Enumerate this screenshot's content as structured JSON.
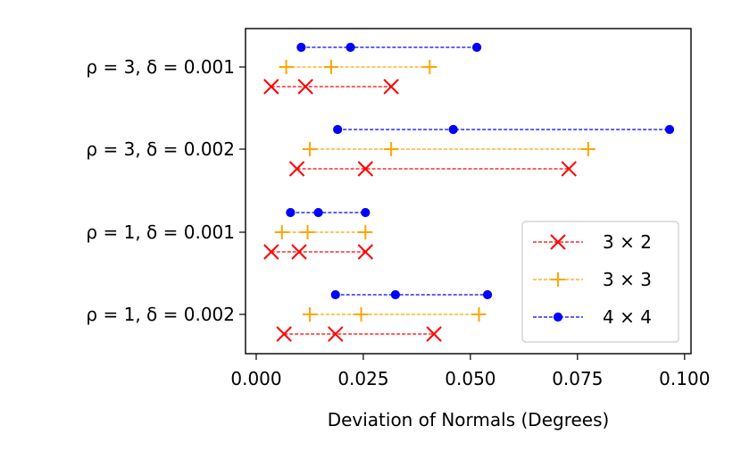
{
  "chart_data": {
    "type": "range-dot",
    "title": "",
    "xlabel": "Deviation of Normals (Degrees)",
    "ylabel": "",
    "xlim": [
      -0.0025,
      0.1015
    ],
    "xticks": [
      0.0,
      0.025,
      0.05,
      0.075,
      0.1
    ],
    "xtick_labels": [
      "0.000",
      "0.025",
      "0.050",
      "0.075",
      "0.100"
    ],
    "grid": false,
    "legend_position": "lower-right",
    "categories": [
      "ρ = 1, δ = 0.002",
      "ρ = 1, δ = 0.001",
      "ρ = 3, δ = 0.002",
      "ρ = 3, δ = 0.001"
    ],
    "series": [
      {
        "name": "3 × 2",
        "color": "#ff0000",
        "marker": "x",
        "values": [
          [
            0.0065,
            0.0185,
            0.0415
          ],
          [
            0.0035,
            0.01,
            0.0255
          ],
          [
            0.0095,
            0.0255,
            0.073
          ],
          [
            0.0035,
            0.0115,
            0.0315
          ]
        ]
      },
      {
        "name": "3 × 3",
        "color": "#ffa500",
        "marker": "+",
        "values": [
          [
            0.0125,
            0.0245,
            0.052
          ],
          [
            0.006,
            0.012,
            0.0255
          ],
          [
            0.0125,
            0.0315,
            0.0775
          ],
          [
            0.007,
            0.0175,
            0.0405
          ]
        ]
      },
      {
        "name": "4 × 4",
        "color": "#0000ff",
        "marker": "o",
        "values": [
          [
            0.0185,
            0.0325,
            0.054
          ],
          [
            0.008,
            0.0145,
            0.0255
          ],
          [
            0.019,
            0.046,
            0.0965
          ],
          [
            0.0105,
            0.022,
            0.0515
          ]
        ]
      }
    ]
  }
}
